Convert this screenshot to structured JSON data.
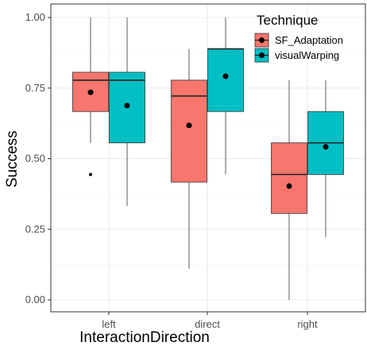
{
  "chart_data": {
    "type": "boxplot",
    "xlabel": "InteractionDirection",
    "ylabel": "Success",
    "categories": [
      "left",
      "direct",
      "right"
    ],
    "ylim": [
      0,
      1
    ],
    "y_ticks": [
      0.0,
      0.25,
      0.5,
      0.75,
      1.0
    ],
    "y_tick_labels": [
      "0.00",
      "0.25",
      "0.50",
      "0.75",
      "1.00"
    ],
    "grid": true,
    "legend": {
      "title": "Technique",
      "placement": "top-right",
      "items": [
        "SF_Adaptation",
        "visualWarping"
      ]
    },
    "colors": {
      "SF_Adaptation": "#F8766D",
      "visualWarping": "#00BFC4"
    },
    "series": [
      {
        "name": "SF_Adaptation",
        "boxes": [
          {
            "category": "left",
            "whisker_low": 0.556,
            "q1": 0.667,
            "median": 0.778,
            "q3": 0.806,
            "whisker_high": 1.0,
            "mean": 0.735,
            "outliers": [
              0.444
            ]
          },
          {
            "category": "direct",
            "whisker_low": 0.111,
            "q1": 0.417,
            "median": 0.722,
            "q3": 0.778,
            "whisker_high": 0.889,
            "mean": 0.618,
            "outliers": []
          },
          {
            "category": "right",
            "whisker_low": 0.0,
            "q1": 0.306,
            "median": 0.444,
            "q3": 0.556,
            "whisker_high": 0.778,
            "mean": 0.403,
            "outliers": []
          }
        ]
      },
      {
        "name": "visualWarping",
        "boxes": [
          {
            "category": "left",
            "whisker_low": 0.333,
            "q1": 0.556,
            "median": 0.778,
            "q3": 0.806,
            "whisker_high": 1.0,
            "mean": 0.688,
            "outliers": []
          },
          {
            "category": "direct",
            "whisker_low": 0.444,
            "q1": 0.667,
            "median": 0.889,
            "q3": 0.889,
            "whisker_high": 1.0,
            "mean": 0.792,
            "outliers": []
          },
          {
            "category": "right",
            "whisker_low": 0.222,
            "q1": 0.444,
            "median": 0.556,
            "q3": 0.667,
            "whisker_high": 0.778,
            "mean": 0.542,
            "outliers": []
          }
        ]
      }
    ]
  }
}
